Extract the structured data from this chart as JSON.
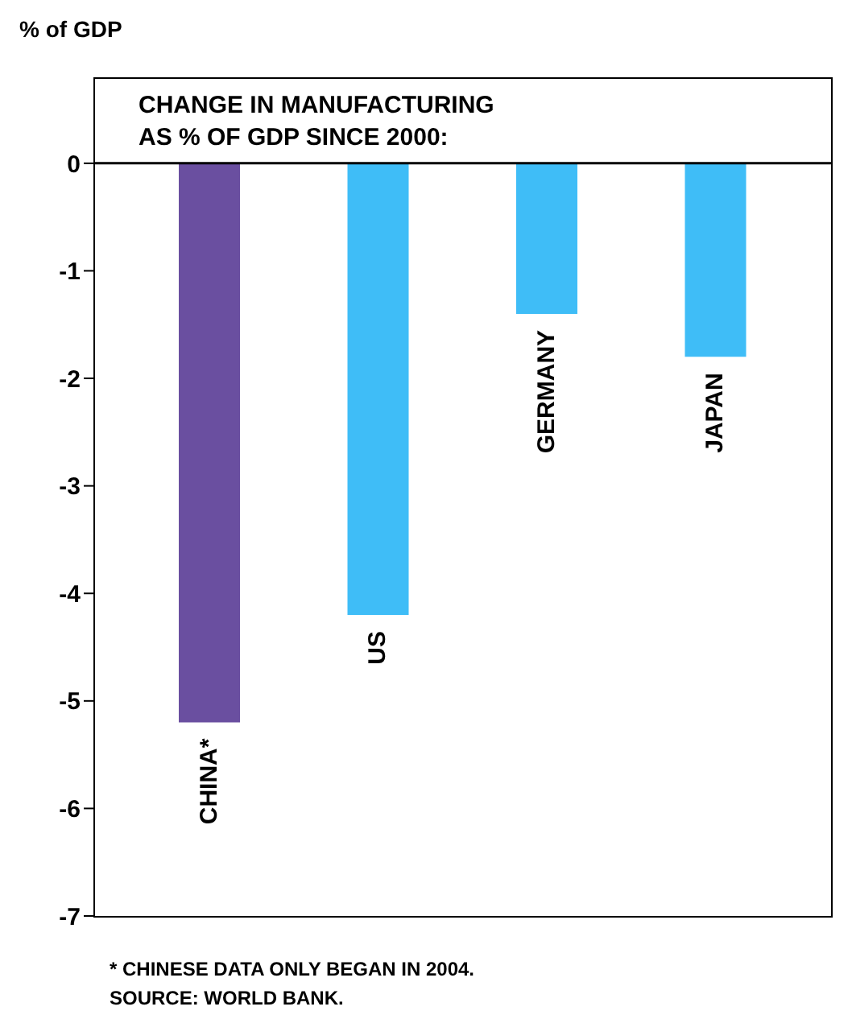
{
  "chart_data": {
    "type": "bar",
    "title": "CHANGE IN MANUFACTURING\nAS % OF GDP SINCE 2000:",
    "ylabel": "% of GDP",
    "categories": [
      "CHINA*",
      "US",
      "GERMANY",
      "JAPAN"
    ],
    "values": [
      -5.2,
      -4.2,
      -1.4,
      -1.8
    ],
    "colors": [
      "#6a4fa0",
      "#3fbdf7",
      "#3fbdf7",
      "#3fbdf7"
    ],
    "ylim": [
      -7,
      0.8
    ],
    "yticks": [
      0,
      -1,
      -2,
      -3,
      -4,
      -5,
      -6,
      -7
    ],
    "ref_lines": [
      {
        "axis": "y",
        "value": 0,
        "color": "#000000"
      }
    ],
    "annotations": [
      "* CHINESE DATA ONLY BEGAN IN 2004.",
      "SOURCE: WORLD BANK."
    ],
    "grid": false
  }
}
